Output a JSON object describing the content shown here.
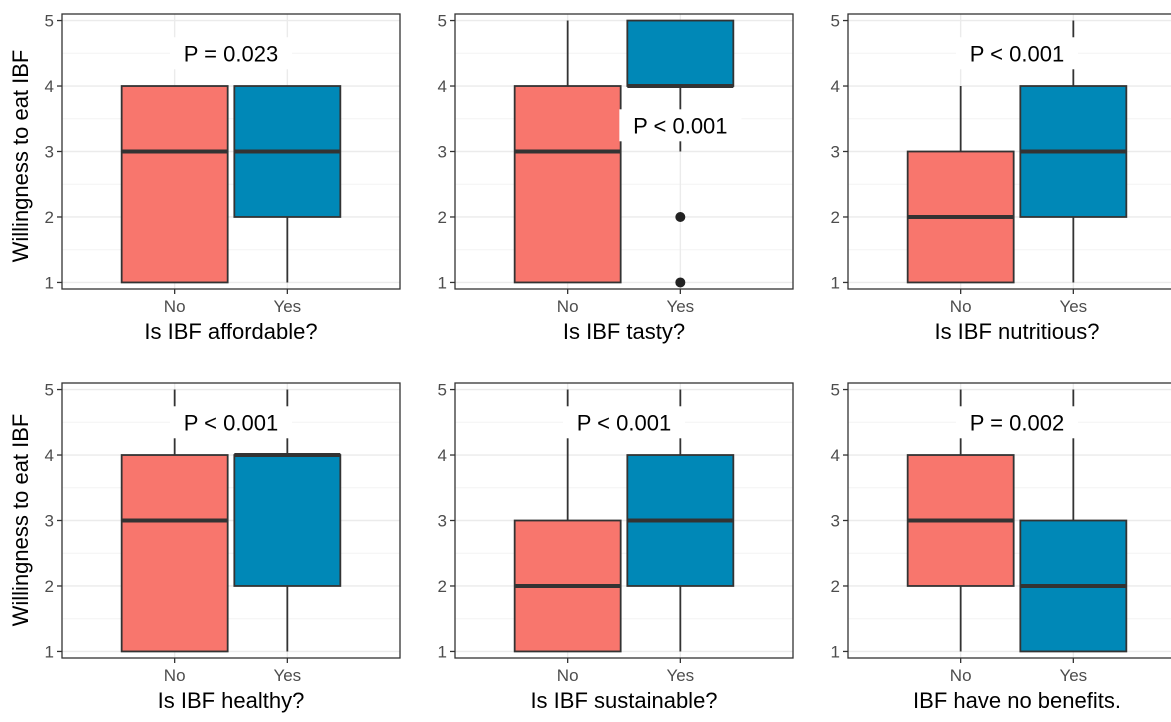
{
  "chart_data": {
    "type": "boxplot",
    "ylabel": "Willingness to eat IBF",
    "ylim": [
      0.9,
      5.1
    ],
    "yticks": [
      1,
      2,
      3,
      4,
      5
    ],
    "categories": [
      "No",
      "Yes"
    ],
    "colors": {
      "No": "#f8766d",
      "Yes": "#0088b7"
    },
    "panels": [
      {
        "xlabel": "Is IBF affordable?",
        "annotation": "P = 0.023",
        "boxes": [
          {
            "category": "No",
            "min": 1,
            "q1": 1,
            "median": 3,
            "q3": 4,
            "max": 4,
            "outliers": []
          },
          {
            "category": "Yes",
            "min": 1,
            "q1": 2,
            "median": 3,
            "q3": 4,
            "max": 4,
            "outliers": []
          }
        ]
      },
      {
        "xlabel": "Is IBF tasty?",
        "annotation": "P < 0.001",
        "boxes": [
          {
            "category": "No",
            "min": 1,
            "q1": 1,
            "median": 3,
            "q3": 4,
            "max": 5,
            "outliers": []
          },
          {
            "category": "Yes",
            "min": 3,
            "q1": 4,
            "median": 4,
            "q3": 5,
            "max": 5,
            "outliers": [
              2,
              1
            ]
          }
        ]
      },
      {
        "xlabel": "Is IBF nutritious?",
        "annotation": "P < 0.001",
        "boxes": [
          {
            "category": "No",
            "min": 1,
            "q1": 1,
            "median": 2,
            "q3": 3,
            "max": 4,
            "outliers": []
          },
          {
            "category": "Yes",
            "min": 1,
            "q1": 2,
            "median": 3,
            "q3": 4,
            "max": 5,
            "outliers": []
          }
        ]
      },
      {
        "xlabel": "Is IBF healthy?",
        "annotation": "P < 0.001",
        "boxes": [
          {
            "category": "No",
            "min": 1,
            "q1": 1,
            "median": 3,
            "q3": 4,
            "max": 5,
            "outliers": []
          },
          {
            "category": "Yes",
            "min": 1,
            "q1": 2,
            "median": 4,
            "q3": 4,
            "max": 5,
            "outliers": []
          }
        ]
      },
      {
        "xlabel": "Is IBF sustainable?",
        "annotation": "P < 0.001",
        "boxes": [
          {
            "category": "No",
            "min": 1,
            "q1": 1,
            "median": 2,
            "q3": 3,
            "max": 5,
            "outliers": []
          },
          {
            "category": "Yes",
            "min": 1,
            "q1": 2,
            "median": 3,
            "q3": 4,
            "max": 5,
            "outliers": []
          }
        ]
      },
      {
        "xlabel": "IBF have no benefits.",
        "annotation": "P = 0.002",
        "boxes": [
          {
            "category": "No",
            "min": 1,
            "q1": 2,
            "median": 3,
            "q3": 4,
            "max": 5,
            "outliers": []
          },
          {
            "category": "Yes",
            "min": 1,
            "q1": 1,
            "median": 2,
            "q3": 3,
            "max": 5,
            "outliers": []
          }
        ]
      }
    ]
  }
}
